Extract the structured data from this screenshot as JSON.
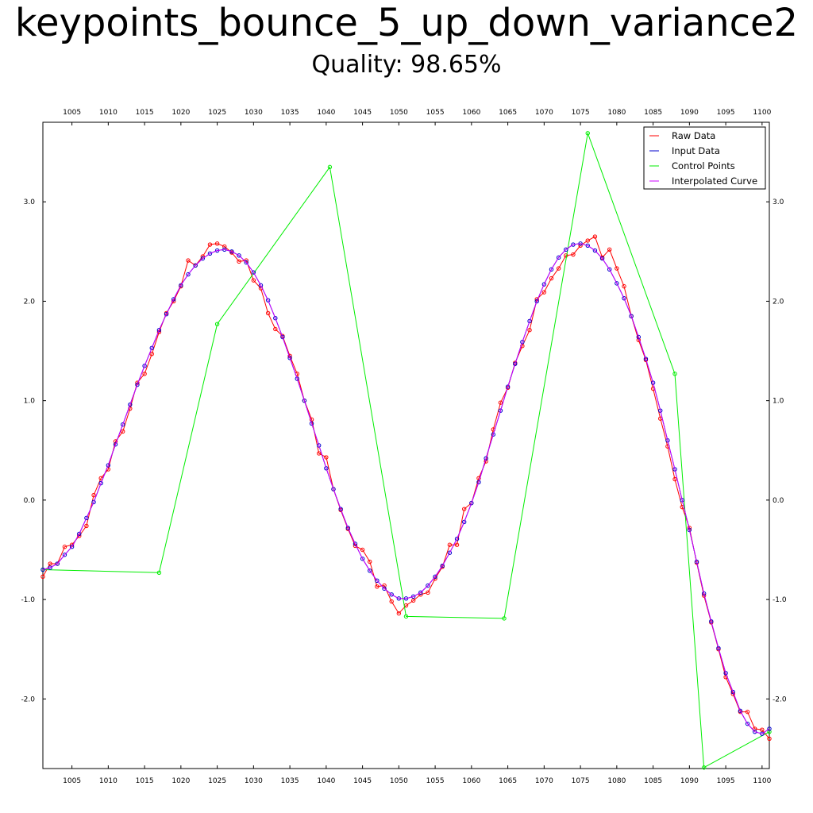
{
  "chart_data": {
    "type": "line",
    "title": "keypoints_bounce_5_up_down_variance2",
    "subtitle": "Quality: 98.65%",
    "xlim": [
      1001,
      1101
    ],
    "ylim": [
      -2.7,
      3.8
    ],
    "x_ticks": [
      1005,
      1010,
      1015,
      1020,
      1025,
      1030,
      1035,
      1040,
      1045,
      1050,
      1055,
      1060,
      1065,
      1070,
      1075,
      1080,
      1085,
      1090,
      1095,
      1100
    ],
    "x_tick_labels": [
      "1005",
      "1010",
      "1015",
      "1020",
      "1025",
      "1030",
      "1035",
      "1040",
      "1045",
      "1050",
      "1055",
      "1060",
      "1065",
      "1070",
      "1075",
      "1080",
      "1085",
      "1090",
      "1095",
      "1100"
    ],
    "y_ticks": [
      -2,
      -1,
      0,
      1,
      2,
      3
    ],
    "y_tick_labels": [
      "-2.0",
      "-1.0",
      "0.0",
      "1.0",
      "2.0",
      "3.0"
    ],
    "grid": false,
    "legend_position": "top-right",
    "series": [
      {
        "name": "Raw Data",
        "color": "#ff0000",
        "marker": "circle",
        "x": [
          1001,
          1002,
          1003,
          1004,
          1005,
          1006,
          1007,
          1008,
          1009,
          1010,
          1011,
          1012,
          1013,
          1014,
          1015,
          1016,
          1017,
          1018,
          1019,
          1020,
          1021,
          1022,
          1023,
          1024,
          1025,
          1026,
          1027,
          1028,
          1029,
          1030,
          1031,
          1032,
          1033,
          1034,
          1035,
          1036,
          1037,
          1038,
          1039,
          1040,
          1041,
          1042,
          1043,
          1044,
          1045,
          1046,
          1047,
          1048,
          1049,
          1050,
          1051,
          1052,
          1053,
          1054,
          1055,
          1056,
          1057,
          1058,
          1059,
          1060,
          1061,
          1062,
          1063,
          1064,
          1065,
          1066,
          1067,
          1068,
          1069,
          1070,
          1071,
          1072,
          1073,
          1074,
          1075,
          1076,
          1077,
          1078,
          1079,
          1080,
          1081,
          1082,
          1083,
          1084,
          1085,
          1086,
          1087,
          1088,
          1089,
          1090,
          1091,
          1092,
          1093,
          1094,
          1095,
          1096,
          1097,
          1098,
          1099,
          1100,
          1101
        ],
        "y": [
          -0.77,
          -0.64,
          -0.64,
          -0.47,
          -0.45,
          -0.36,
          -0.26,
          0.05,
          0.22,
          0.31,
          0.59,
          0.69,
          0.92,
          1.18,
          1.27,
          1.47,
          1.69,
          1.88,
          2.0,
          2.15,
          2.41,
          2.36,
          2.45,
          2.57,
          2.58,
          2.55,
          2.49,
          2.4,
          2.41,
          2.21,
          2.13,
          1.88,
          1.72,
          1.65,
          1.45,
          1.27,
          1.0,
          0.81,
          0.47,
          0.43,
          0.11,
          -0.1,
          -0.29,
          -0.46,
          -0.5,
          -0.62,
          -0.87,
          -0.86,
          -1.02,
          -1.14,
          -1.06,
          -1.01,
          -0.95,
          -0.93,
          -0.79,
          -0.67,
          -0.45,
          -0.45,
          -0.09,
          -0.03,
          0.22,
          0.39,
          0.71,
          0.98,
          1.13,
          1.38,
          1.55,
          1.71,
          2.02,
          2.09,
          2.23,
          2.33,
          2.46,
          2.47,
          2.56,
          2.61,
          2.65,
          2.44,
          2.52,
          2.33,
          2.15,
          1.85,
          1.61,
          1.41,
          1.12,
          0.82,
          0.54,
          0.21,
          -0.07,
          -0.28,
          -0.63,
          -0.96,
          -1.23,
          -1.5,
          -1.78,
          -1.95,
          -2.13,
          -2.13,
          -2.3,
          -2.31,
          -2.4
        ]
      },
      {
        "name": "Input Data",
        "color": "#0000cc",
        "marker": "circle",
        "x": [
          1001,
          1002,
          1003,
          1004,
          1005,
          1006,
          1007,
          1008,
          1009,
          1010,
          1011,
          1012,
          1013,
          1014,
          1015,
          1016,
          1017,
          1018,
          1019,
          1020,
          1021,
          1022,
          1023,
          1024,
          1025,
          1026,
          1027,
          1028,
          1029,
          1030,
          1031,
          1032,
          1033,
          1034,
          1035,
          1036,
          1037,
          1038,
          1039,
          1040,
          1041,
          1042,
          1043,
          1044,
          1045,
          1046,
          1047,
          1048,
          1049,
          1050,
          1051,
          1052,
          1053,
          1054,
          1055,
          1056,
          1057,
          1058,
          1059,
          1060,
          1061,
          1062,
          1063,
          1064,
          1065,
          1066,
          1067,
          1068,
          1069,
          1070,
          1071,
          1072,
          1073,
          1074,
          1075,
          1076,
          1077,
          1078,
          1079,
          1080,
          1081,
          1082,
          1083,
          1084,
          1085,
          1086,
          1087,
          1088,
          1089,
          1090,
          1091,
          1092,
          1093,
          1094,
          1095,
          1096,
          1097,
          1098,
          1099,
          1100,
          1101
        ],
        "y": [
          -0.7,
          -0.68,
          -0.64,
          -0.55,
          -0.47,
          -0.34,
          -0.18,
          -0.02,
          0.17,
          0.35,
          0.56,
          0.76,
          0.96,
          1.16,
          1.35,
          1.53,
          1.71,
          1.87,
          2.02,
          2.16,
          2.27,
          2.36,
          2.43,
          2.48,
          2.51,
          2.52,
          2.5,
          2.46,
          2.39,
          2.29,
          2.16,
          2.01,
          1.83,
          1.64,
          1.43,
          1.22,
          1.0,
          0.77,
          0.55,
          0.32,
          0.11,
          -0.09,
          -0.28,
          -0.44,
          -0.59,
          -0.71,
          -0.81,
          -0.89,
          -0.95,
          -0.99,
          -0.99,
          -0.97,
          -0.93,
          -0.86,
          -0.77,
          -0.66,
          -0.53,
          -0.39,
          -0.22,
          -0.03,
          0.18,
          0.42,
          0.66,
          0.9,
          1.14,
          1.37,
          1.59,
          1.8,
          2.0,
          2.17,
          2.32,
          2.44,
          2.52,
          2.57,
          2.58,
          2.56,
          2.51,
          2.43,
          2.32,
          2.18,
          2.03,
          1.85,
          1.64,
          1.42,
          1.18,
          0.9,
          0.6,
          0.31,
          0.0,
          -0.3,
          -0.62,
          -0.94,
          -1.22,
          -1.49,
          -1.74,
          -1.93,
          -2.12,
          -2.25,
          -2.33,
          -2.35,
          -2.3
        ]
      },
      {
        "name": "Control Points",
        "color": "#00ee00",
        "marker": "circle",
        "x": [
          1001,
          1017,
          1025,
          1040.5,
          1051,
          1064.5,
          1076,
          1088,
          1092,
          1101
        ],
        "y": [
          -0.7,
          -0.73,
          1.77,
          3.35,
          -1.17,
          -1.19,
          3.69,
          1.27,
          -2.69,
          -2.33
        ]
      },
      {
        "name": "Interpolated Curve",
        "color": "#cc00ff",
        "marker": "none",
        "x": [
          1001,
          1002,
          1003,
          1004,
          1005,
          1006,
          1007,
          1008,
          1009,
          1010,
          1011,
          1012,
          1013,
          1014,
          1015,
          1016,
          1017,
          1018,
          1019,
          1020,
          1021,
          1022,
          1023,
          1024,
          1025,
          1026,
          1027,
          1028,
          1029,
          1030,
          1031,
          1032,
          1033,
          1034,
          1035,
          1036,
          1037,
          1038,
          1039,
          1040,
          1041,
          1042,
          1043,
          1044,
          1045,
          1046,
          1047,
          1048,
          1049,
          1050,
          1051,
          1052,
          1053,
          1054,
          1055,
          1056,
          1057,
          1058,
          1059,
          1060,
          1061,
          1062,
          1063,
          1064,
          1065,
          1066,
          1067,
          1068,
          1069,
          1070,
          1071,
          1072,
          1073,
          1074,
          1075,
          1076,
          1077,
          1078,
          1079,
          1080,
          1081,
          1082,
          1083,
          1084,
          1085,
          1086,
          1087,
          1088,
          1089,
          1090,
          1091,
          1092,
          1093,
          1094,
          1095,
          1096,
          1097,
          1098,
          1099,
          1100,
          1101
        ],
        "y": [
          -0.7,
          -0.68,
          -0.64,
          -0.55,
          -0.47,
          -0.34,
          -0.18,
          -0.02,
          0.17,
          0.35,
          0.56,
          0.76,
          0.96,
          1.16,
          1.35,
          1.53,
          1.71,
          1.87,
          2.02,
          2.16,
          2.27,
          2.36,
          2.43,
          2.48,
          2.51,
          2.52,
          2.5,
          2.46,
          2.39,
          2.29,
          2.16,
          2.01,
          1.83,
          1.64,
          1.43,
          1.22,
          1.0,
          0.77,
          0.55,
          0.32,
          0.11,
          -0.09,
          -0.28,
          -0.44,
          -0.59,
          -0.71,
          -0.81,
          -0.89,
          -0.95,
          -0.99,
          -0.99,
          -0.97,
          -0.93,
          -0.86,
          -0.77,
          -0.66,
          -0.53,
          -0.39,
          -0.22,
          -0.03,
          0.18,
          0.42,
          0.66,
          0.9,
          1.14,
          1.37,
          1.59,
          1.8,
          2.0,
          2.17,
          2.32,
          2.44,
          2.52,
          2.57,
          2.58,
          2.56,
          2.51,
          2.43,
          2.32,
          2.18,
          2.03,
          1.85,
          1.64,
          1.42,
          1.18,
          0.9,
          0.6,
          0.31,
          0.0,
          -0.3,
          -0.62,
          -0.94,
          -1.22,
          -1.49,
          -1.74,
          -1.93,
          -2.12,
          -2.25,
          -2.33,
          -2.35,
          -2.3
        ]
      }
    ]
  }
}
